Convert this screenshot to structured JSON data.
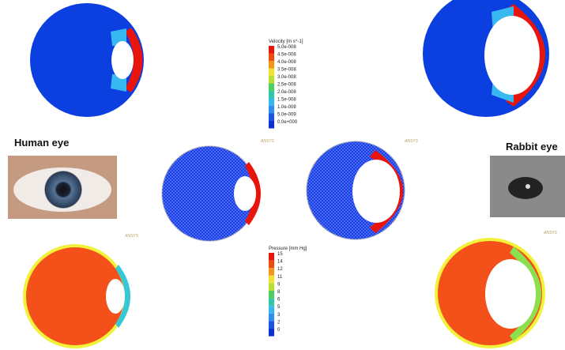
{
  "labels": {
    "human": "Human eye",
    "rabbit": "Rabbit eye"
  },
  "velocity_legend": {
    "title": "Velocity [m s^-1]",
    "labels": [
      "5.0e-008",
      "4.5e-008",
      "4.0e-008",
      "3.5e-008",
      "3.0e-008",
      "2.5e-008",
      "2.0e-008",
      "1.5e-008",
      "1.0e-008",
      "5.0e-009",
      "0.0e+000"
    ]
  },
  "pressure_legend": {
    "title": "Pressure [mm Hg]",
    "labels": [
      "15",
      "14",
      "12",
      "11",
      "9",
      "8",
      "6",
      "5",
      "3",
      "2",
      "0"
    ]
  },
  "logos": [
    "ANSYS",
    "ANSYS",
    "ANSYS",
    "ANSYS"
  ]
}
